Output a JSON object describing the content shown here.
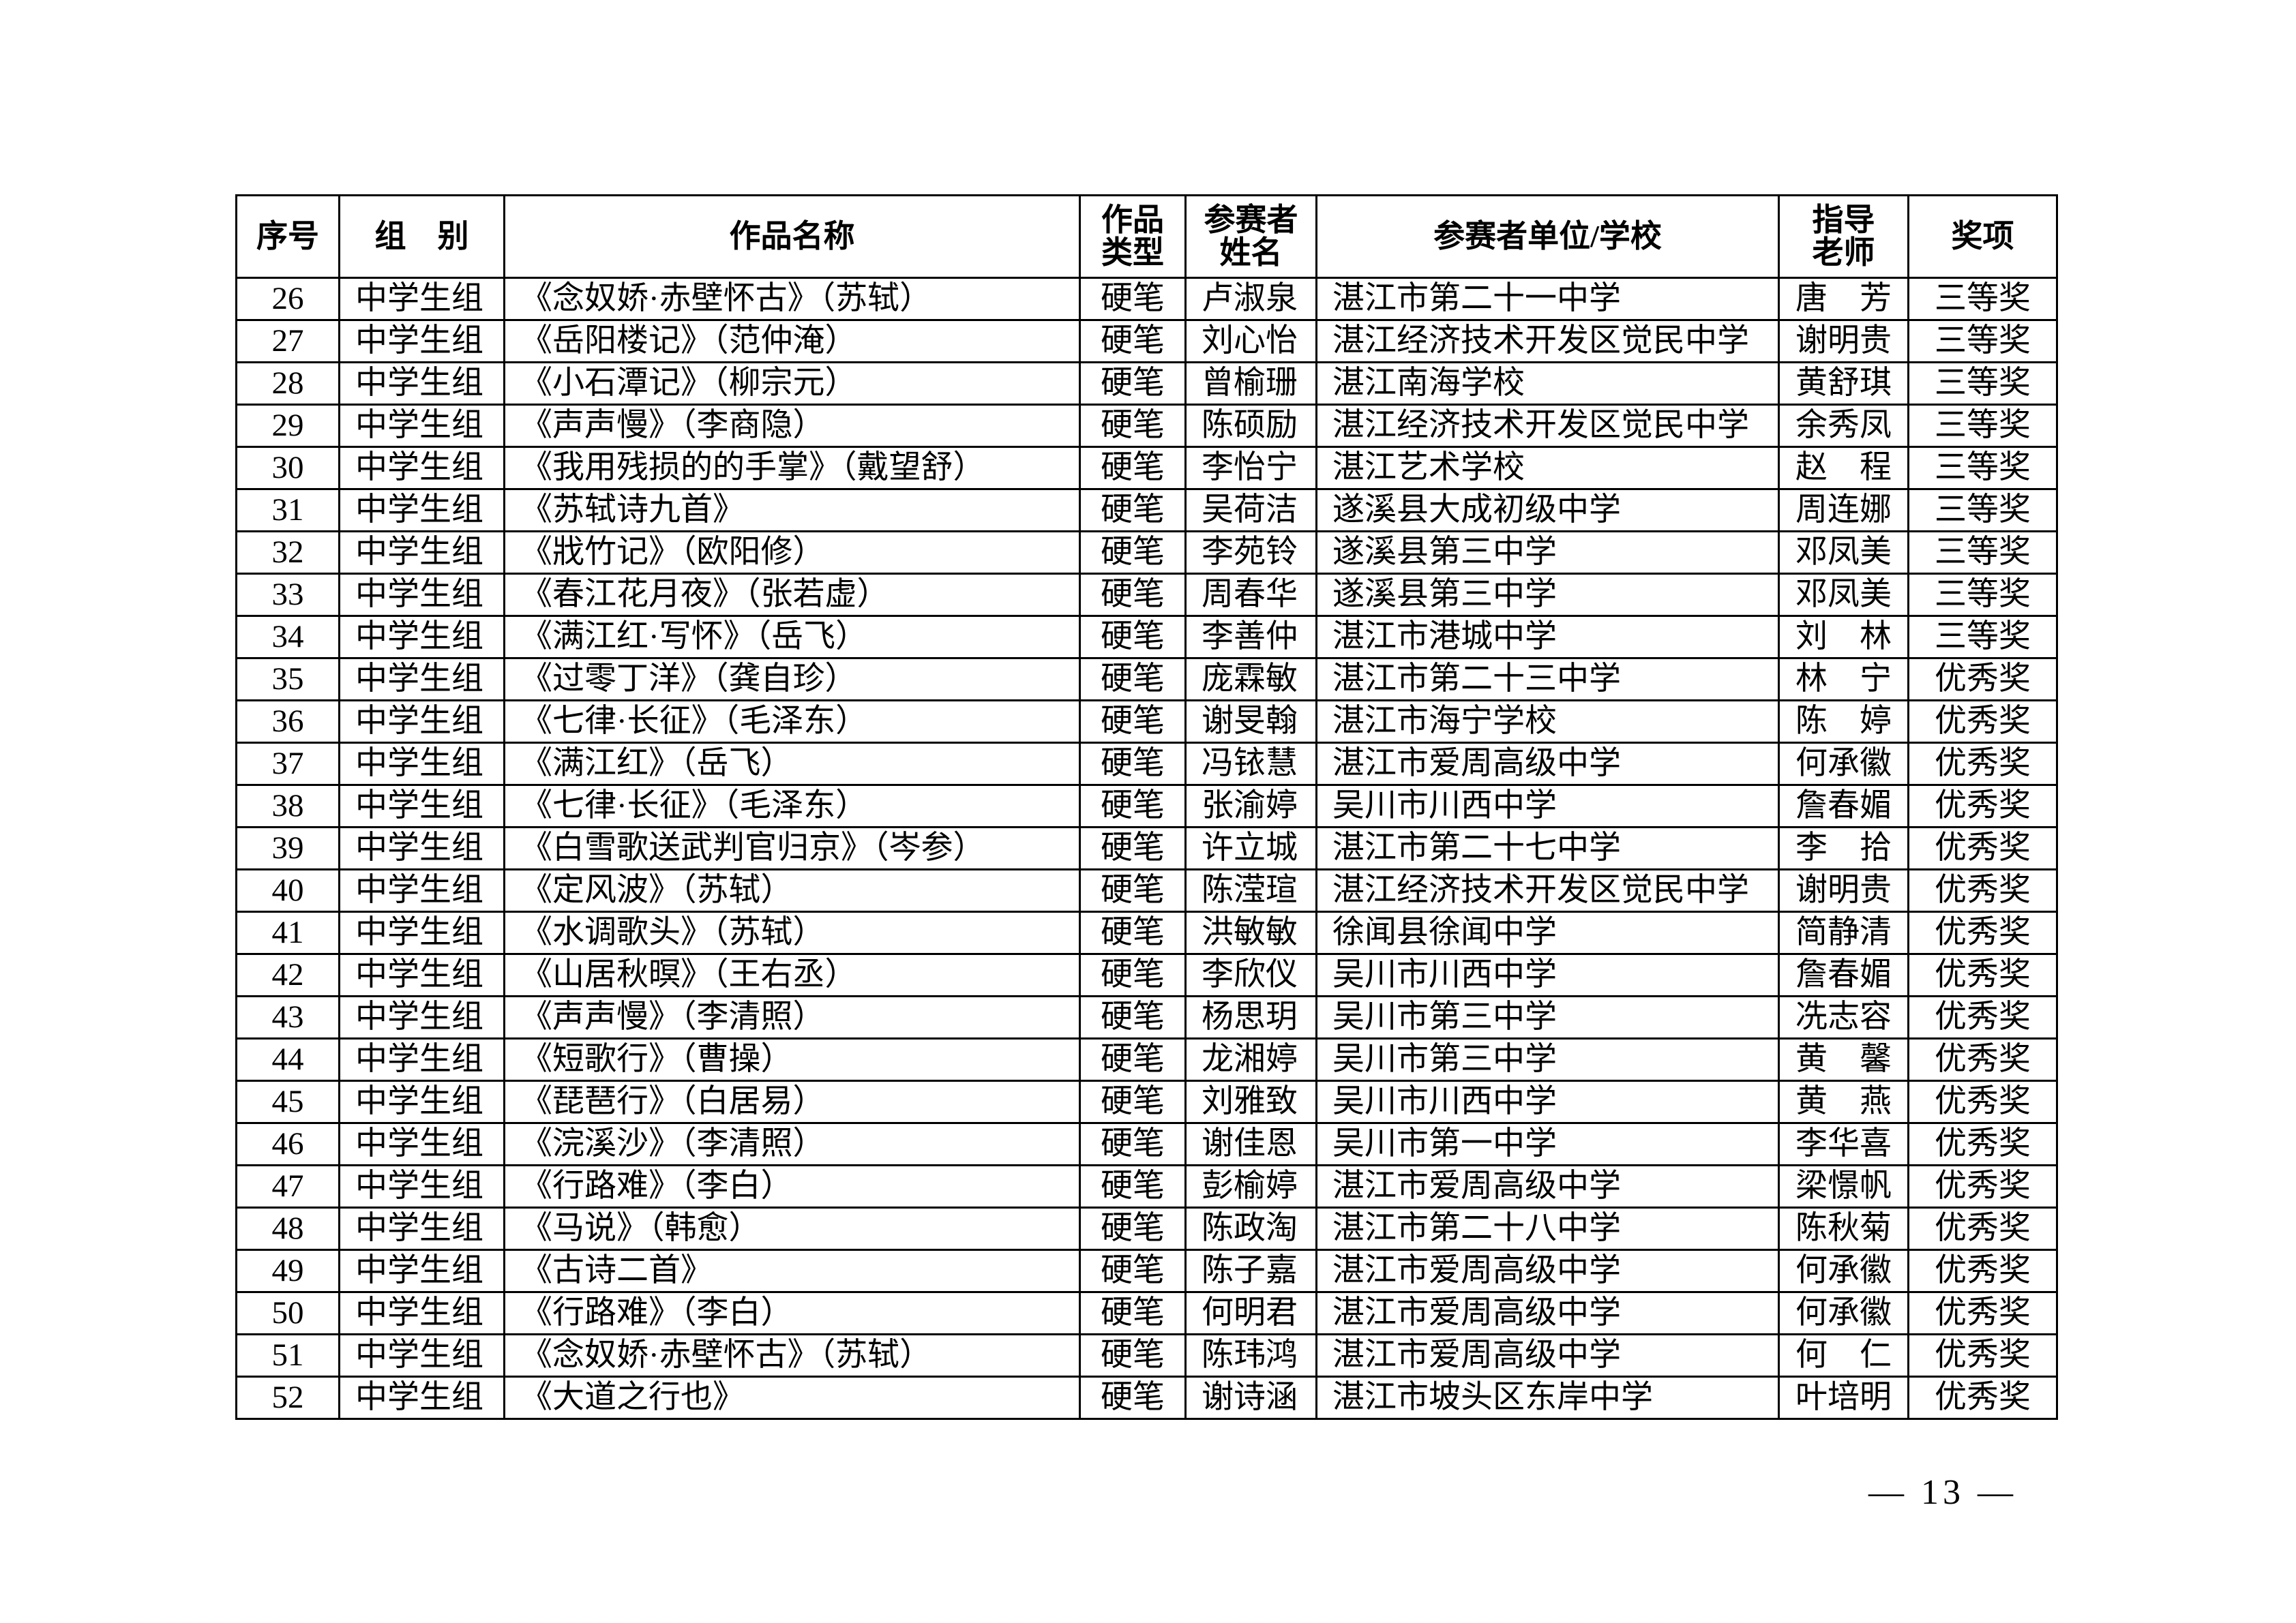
{
  "table": {
    "headers": [
      "序号",
      "组　别",
      "作品名称",
      "作品\n类型",
      "参赛者\n姓名",
      "参赛者单位/学校",
      "指导\n老师",
      "奖项"
    ],
    "rows": [
      [
        "26",
        "中学生组",
        "《念奴娇·赤壁怀古》（苏轼）",
        "硬笔",
        "卢淑泉",
        "湛江市第二十一中学",
        "唐　芳",
        "三等奖"
      ],
      [
        "27",
        "中学生组",
        "《岳阳楼记》（范仲淹）",
        "硬笔",
        "刘心怡",
        "湛江经济技术开发区觉民中学",
        "谢明贵",
        "三等奖"
      ],
      [
        "28",
        "中学生组",
        "《小石潭记》（柳宗元）",
        "硬笔",
        "曾榆珊",
        "湛江南海学校",
        "黄舒琪",
        "三等奖"
      ],
      [
        "29",
        "中学生组",
        "《声声慢》（李商隐）",
        "硬笔",
        "陈硕励",
        "湛江经济技术开发区觉民中学",
        "余秀凤",
        "三等奖"
      ],
      [
        "30",
        "中学生组",
        "《我用残损的的手掌》（戴望舒）",
        "硬笔",
        "李怡宁",
        "湛江艺术学校",
        "赵　程",
        "三等奖"
      ],
      [
        "31",
        "中学生组",
        "《苏轼诗九首》",
        "硬笔",
        "吴荷洁",
        "遂溪县大成初级中学",
        "周连娜",
        "三等奖"
      ],
      [
        "32",
        "中学生组",
        "《戕竹记》（欧阳修）",
        "硬笔",
        "李苑铃",
        "遂溪县第三中学",
        "邓凤美",
        "三等奖"
      ],
      [
        "33",
        "中学生组",
        "《春江花月夜》（张若虚）",
        "硬笔",
        "周春华",
        "遂溪县第三中学",
        "邓凤美",
        "三等奖"
      ],
      [
        "34",
        "中学生组",
        "《满江红·写怀》（岳飞）",
        "硬笔",
        "李善仲",
        "湛江市港城中学",
        "刘　林",
        "三等奖"
      ],
      [
        "35",
        "中学生组",
        "《过零丁洋》（龚自珍）",
        "硬笔",
        "庞霖敏",
        "湛江市第二十三中学",
        "林　宁",
        "优秀奖"
      ],
      [
        "36",
        "中学生组",
        "《七律·长征》（毛泽东）",
        "硬笔",
        "谢旻翰",
        "湛江市海宁学校",
        "陈　婷",
        "优秀奖"
      ],
      [
        "37",
        "中学生组",
        "《满江红》（岳飞）",
        "硬笔",
        "冯铱慧",
        "湛江市爱周高级中学",
        "何承徽",
        "优秀奖"
      ],
      [
        "38",
        "中学生组",
        "《七律·长征》（毛泽东）",
        "硬笔",
        "张渝婷",
        "吴川市川西中学",
        "詹春媚",
        "优秀奖"
      ],
      [
        "39",
        "中学生组",
        "《白雪歌送武判官归京》（岑参）",
        "硬笔",
        "许立城",
        "湛江市第二十七中学",
        "李　拾",
        "优秀奖"
      ],
      [
        "40",
        "中学生组",
        "《定风波》（苏轼）",
        "硬笔",
        "陈滢瑄",
        "湛江经济技术开发区觉民中学",
        "谢明贵",
        "优秀奖"
      ],
      [
        "41",
        "中学生组",
        "《水调歌头》（苏轼）",
        "硬笔",
        "洪敏敏",
        "徐闻县徐闻中学",
        "简静清",
        "优秀奖"
      ],
      [
        "42",
        "中学生组",
        "《山居秋暝》（王右丞）",
        "硬笔",
        "李欣仪",
        "吴川市川西中学",
        "詹春媚",
        "优秀奖"
      ],
      [
        "43",
        "中学生组",
        "《声声慢》（李清照）",
        "硬笔",
        "杨思玥",
        "吴川市第三中学",
        "冼志容",
        "优秀奖"
      ],
      [
        "44",
        "中学生组",
        "《短歌行》（曹操）",
        "硬笔",
        "龙湘婷",
        "吴川市第三中学",
        "黄　馨",
        "优秀奖"
      ],
      [
        "45",
        "中学生组",
        "《琵琶行》（白居易）",
        "硬笔",
        "刘雅致",
        "吴川市川西中学",
        "黄　燕",
        "优秀奖"
      ],
      [
        "46",
        "中学生组",
        "《浣溪沙》（李清照）",
        "硬笔",
        "谢佳恩",
        "吴川市第一中学",
        "李华喜",
        "优秀奖"
      ],
      [
        "47",
        "中学生组",
        "《行路难》（李白）",
        "硬笔",
        "彭榆婷",
        "湛江市爱周高级中学",
        "梁憬帆",
        "优秀奖"
      ],
      [
        "48",
        "中学生组",
        "《马说》（韩愈）",
        "硬笔",
        "陈政淘",
        "湛江市第二十八中学",
        "陈秋菊",
        "优秀奖"
      ],
      [
        "49",
        "中学生组",
        "《古诗二首》",
        "硬笔",
        "陈子嘉",
        "湛江市爱周高级中学",
        "何承徽",
        "优秀奖"
      ],
      [
        "50",
        "中学生组",
        "《行路难》（李白）",
        "硬笔",
        "何明君",
        "湛江市爱周高级中学",
        "何承徽",
        "优秀奖"
      ],
      [
        "51",
        "中学生组",
        "《念奴娇·赤壁怀古》（苏轼）",
        "硬笔",
        "陈玮鸿",
        "湛江市爱周高级中学",
        "何　仁",
        "优秀奖"
      ],
      [
        "52",
        "中学生组",
        "《大道之行也》",
        "硬笔",
        "谢诗涵",
        "湛江市坡头区东岸中学",
        "叶培明",
        "优秀奖"
      ]
    ]
  },
  "footer": {
    "page_number": "— 13 —"
  }
}
